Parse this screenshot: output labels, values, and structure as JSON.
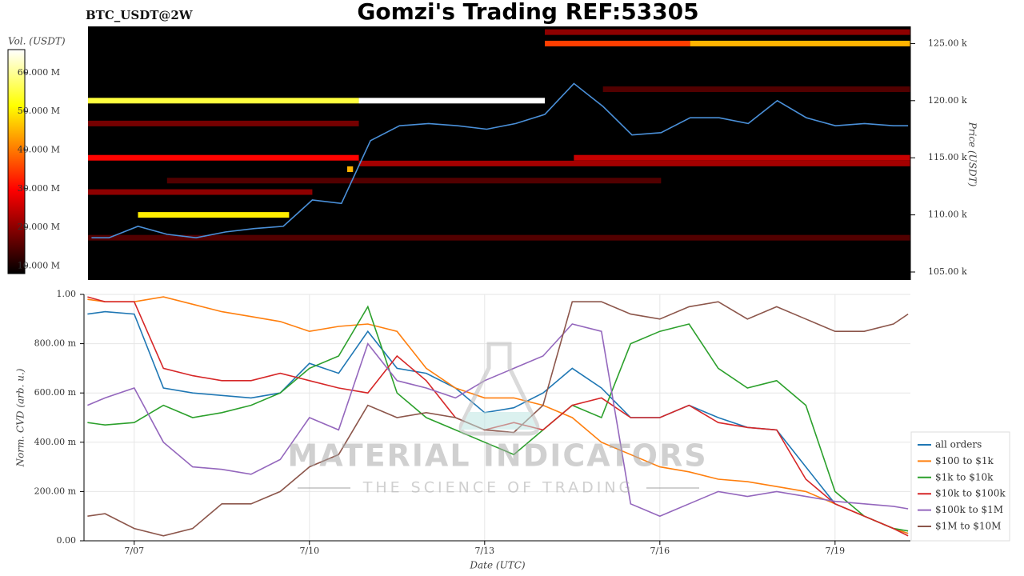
{
  "chart_data": [
    {
      "type": "heatmap",
      "title": "Gomzi's Trading REF:53305",
      "subtitle": "BTC_USDT@2W",
      "ylabel": "Price (USDT)",
      "xlim": [
        6.14,
        20.29
      ],
      "ylim": [
        104.3,
        126.5
      ],
      "yticks": [
        {
          "value": 105,
          "label": "105.00 k"
        },
        {
          "value": 110,
          "label": "110.00 k"
        },
        {
          "value": 115,
          "label": "115.00 k"
        },
        {
          "value": 120,
          "label": "120.00 k"
        },
        {
          "value": 125,
          "label": "125.00 k"
        }
      ],
      "colorbar": {
        "label": "Vol. (USDT)",
        "lim": [
          8,
          66
        ],
        "ticks": [
          {
            "value": 10,
            "label": "10.000 M"
          },
          {
            "value": 20,
            "label": "20.000 M"
          },
          {
            "value": 30,
            "label": "30.000 M"
          },
          {
            "value": 40,
            "label": "40.000 M"
          },
          {
            "value": 50,
            "label": "50.000 M"
          },
          {
            "value": 60,
            "label": "60.000 M"
          }
        ]
      },
      "bands": [
        {
          "price": 108,
          "from": 6.14,
          "to": 20.29,
          "volume": 15
        },
        {
          "price": 112,
          "from": 6.14,
          "to": 10.0,
          "volume": 20
        },
        {
          "price": 113,
          "from": 7.5,
          "to": 16.0,
          "volume": 15
        },
        {
          "price": 118,
          "from": 6.14,
          "to": 10.8,
          "volume": 18
        },
        {
          "price": 114.5,
          "from": 10.8,
          "to": 20.29,
          "volume": 22
        },
        {
          "price": 115,
          "from": 14.5,
          "to": 20.29,
          "volume": 25
        },
        {
          "price": 121,
          "from": 15.0,
          "to": 20.29,
          "volume": 15
        },
        {
          "price": 126,
          "from": 14.0,
          "to": 20.29,
          "volume": 20
        },
        {
          "price": 115,
          "from": 6.14,
          "to": 10.8,
          "volume": 30
        },
        {
          "price": 114,
          "from": 10.6,
          "to": 10.7,
          "volume": 45
        },
        {
          "price": 110,
          "from": 7.0,
          "to": 9.6,
          "volume": 50
        },
        {
          "price": 120,
          "from": 6.14,
          "to": 10.8,
          "volume": 55
        },
        {
          "price": 120,
          "from": 10.8,
          "to": 14.0,
          "volume": 66
        },
        {
          "price": 125,
          "from": 14.0,
          "to": 16.5,
          "volume": 35
        },
        {
          "price": 125,
          "from": 16.5,
          "to": 20.29,
          "volume": 45
        }
      ],
      "price": {
        "color": "#4a90d9",
        "x": [
          6.2,
          6.5,
          7.0,
          7.5,
          8.0,
          8.5,
          9.0,
          9.5,
          10.0,
          10.5,
          11.0,
          11.5,
          12.0,
          12.5,
          13.0,
          13.5,
          14.0,
          14.5,
          15.0,
          15.5,
          16.0,
          16.5,
          17.0,
          17.5,
          18.0,
          18.5,
          19.0,
          19.5,
          20.0,
          20.25
        ],
        "values": [
          108.0,
          108.0,
          109.0,
          108.3,
          108.0,
          108.5,
          108.8,
          109.0,
          111.3,
          111.0,
          116.5,
          117.8,
          118.0,
          117.8,
          117.5,
          118.0,
          118.8,
          121.5,
          119.5,
          117.0,
          117.2,
          118.5,
          118.5,
          118.0,
          120.0,
          118.5,
          117.8,
          118.0,
          117.8,
          117.8
        ]
      }
    },
    {
      "type": "line",
      "xlabel": "Date (UTC)",
      "ylabel": "Norm. CVD (arb. u.)",
      "watermark": "MATERIAL INDICATORS",
      "watermark_sub": "THE SCIENCE OF TRADING",
      "xlim": [
        6.14,
        20.29
      ],
      "ylim": [
        0,
        1
      ],
      "xticks": [
        {
          "value": 7,
          "label": "7/07"
        },
        {
          "value": 10,
          "label": "7/10"
        },
        {
          "value": 13,
          "label": "7/13"
        },
        {
          "value": 16,
          "label": "7/16"
        },
        {
          "value": 19,
          "label": "7/19"
        }
      ],
      "yticks": [
        {
          "value": 0,
          "label": "0.00"
        },
        {
          "value": 0.2,
          "label": "200.00 m"
        },
        {
          "value": 0.4,
          "label": "400.00 m"
        },
        {
          "value": 0.6,
          "label": "600.00 m"
        },
        {
          "value": 0.8,
          "label": "800.00 m"
        },
        {
          "value": 1,
          "label": "1.00"
        }
      ],
      "grid": true,
      "legend": "right",
      "x": [
        6.2,
        6.5,
        7.0,
        7.5,
        8.0,
        8.5,
        9.0,
        9.5,
        10.0,
        10.5,
        11.0,
        11.5,
        12.0,
        12.5,
        13.0,
        13.5,
        14.0,
        14.5,
        15.0,
        15.5,
        16.0,
        16.5,
        17.0,
        17.5,
        18.0,
        18.5,
        19.0,
        19.5,
        20.0,
        20.25
      ],
      "series": [
        {
          "name": "all orders",
          "color": "#1f77b4",
          "values": [
            0.92,
            0.93,
            0.92,
            0.62,
            0.6,
            0.59,
            0.58,
            0.6,
            0.72,
            0.68,
            0.85,
            0.7,
            0.68,
            0.62,
            0.52,
            0.54,
            0.6,
            0.7,
            0.62,
            0.5,
            0.5,
            0.55,
            0.5,
            0.46,
            0.45,
            0.3,
            0.15,
            0.1,
            0.05,
            0.03
          ]
        },
        {
          "name": "$100 to $1k",
          "color": "#ff7f0e",
          "values": [
            0.98,
            0.97,
            0.97,
            0.99,
            0.96,
            0.93,
            0.91,
            0.89,
            0.85,
            0.87,
            0.88,
            0.85,
            0.7,
            0.62,
            0.58,
            0.58,
            0.55,
            0.5,
            0.4,
            0.35,
            0.3,
            0.28,
            0.25,
            0.24,
            0.22,
            0.2,
            0.15,
            0.1,
            0.05,
            0.03
          ]
        },
        {
          "name": "$1k to $10k",
          "color": "#2ca02c",
          "values": [
            0.48,
            0.47,
            0.48,
            0.55,
            0.5,
            0.52,
            0.55,
            0.6,
            0.7,
            0.75,
            0.95,
            0.6,
            0.5,
            0.45,
            0.4,
            0.35,
            0.45,
            0.55,
            0.5,
            0.8,
            0.85,
            0.88,
            0.7,
            0.62,
            0.65,
            0.55,
            0.2,
            0.1,
            0.05,
            0.04
          ]
        },
        {
          "name": "$10k to $100k",
          "color": "#d62728",
          "values": [
            0.99,
            0.97,
            0.97,
            0.7,
            0.67,
            0.65,
            0.65,
            0.68,
            0.65,
            0.62,
            0.6,
            0.75,
            0.65,
            0.5,
            0.45,
            0.48,
            0.45,
            0.55,
            0.58,
            0.5,
            0.5,
            0.55,
            0.48,
            0.46,
            0.45,
            0.25,
            0.15,
            0.1,
            0.05,
            0.02
          ]
        },
        {
          "name": "$100k to $1M",
          "color": "#9467bd",
          "values": [
            0.55,
            0.58,
            0.62,
            0.4,
            0.3,
            0.29,
            0.27,
            0.33,
            0.5,
            0.45,
            0.8,
            0.65,
            0.62,
            0.58,
            0.65,
            0.7,
            0.75,
            0.88,
            0.85,
            0.15,
            0.1,
            0.15,
            0.2,
            0.18,
            0.2,
            0.18,
            0.16,
            0.15,
            0.14,
            0.13
          ]
        },
        {
          "name": "$1M to $10M",
          "color": "#8c564b",
          "values": [
            0.1,
            0.11,
            0.05,
            0.02,
            0.05,
            0.15,
            0.15,
            0.2,
            0.3,
            0.35,
            0.55,
            0.5,
            0.52,
            0.5,
            0.45,
            0.44,
            0.55,
            0.97,
            0.97,
            0.92,
            0.9,
            0.95,
            0.97,
            0.9,
            0.95,
            0.9,
            0.85,
            0.85,
            0.88,
            0.92
          ]
        }
      ]
    }
  ]
}
